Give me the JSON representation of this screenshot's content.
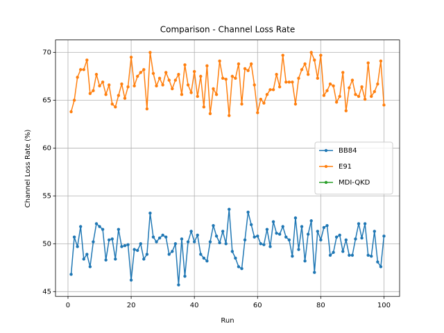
{
  "chart_data": {
    "type": "line",
    "title": "Comparison - Channel Loss Rate",
    "x_label": "Run",
    "y_label": "Channel Loss Rate (%)",
    "x": [
      1,
      2,
      3,
      4,
      5,
      6,
      7,
      8,
      9,
      10,
      11,
      12,
      13,
      14,
      15,
      16,
      17,
      18,
      19,
      20,
      21,
      22,
      23,
      24,
      25,
      26,
      27,
      28,
      29,
      30,
      31,
      32,
      33,
      34,
      35,
      36,
      37,
      38,
      39,
      40,
      41,
      42,
      43,
      44,
      45,
      46,
      47,
      48,
      49,
      50,
      51,
      52,
      53,
      54,
      55,
      56,
      57,
      58,
      59,
      60,
      61,
      62,
      63,
      64,
      65,
      66,
      67,
      68,
      69,
      70,
      71,
      72,
      73,
      74,
      75,
      76,
      77,
      78,
      79,
      80,
      81,
      82,
      83,
      84,
      85,
      86,
      87,
      88,
      89,
      90,
      91,
      92,
      93,
      94,
      95,
      96,
      97,
      98,
      99,
      100
    ],
    "series": [
      {
        "name": "BB84",
        "color": "#1f77b4",
        "values": [
          46.8,
          50.7,
          49.7,
          51.8,
          48.4,
          48.9,
          47.6,
          50.2,
          52.1,
          51.8,
          51.5,
          48.3,
          50.4,
          50.5,
          48.4,
          51.5,
          49.7,
          49.8,
          49.9,
          46.2,
          49.4,
          49.3,
          50.0,
          48.4,
          48.9,
          53.2,
          50.7,
          50.2,
          50.6,
          50.9,
          50.7,
          48.9,
          49.2,
          50.0,
          45.7,
          50.5,
          46.6,
          50.2,
          51.3,
          50.2,
          50.9,
          48.9,
          48.5,
          48.2,
          50.2,
          51.9,
          50.8,
          50.1,
          51.3,
          50.0,
          53.6,
          49.2,
          48.5,
          47.6,
          47.4,
          50.4,
          53.3,
          52.0,
          50.7,
          50.8,
          50.0,
          49.9,
          51.5,
          49.7,
          52.3,
          51.1,
          51.0,
          51.8,
          50.7,
          50.4,
          48.7,
          52.7,
          49.4,
          51.8,
          48.2,
          51.0,
          52.4,
          47.0,
          51.3,
          50.4,
          51.7,
          51.9,
          48.8,
          49.1,
          50.7,
          50.9,
          49.2,
          50.4,
          48.8,
          48.8,
          50.5,
          52.1,
          50.6,
          52.1,
          48.8,
          48.7,
          51.3,
          48.1,
          47.6,
          50.8
        ]
      },
      {
        "name": "E91",
        "color": "#ff7f0e",
        "values": [
          63.8,
          65.0,
          67.4,
          68.2,
          68.2,
          69.2,
          65.7,
          66.0,
          67.7,
          66.5,
          66.9,
          65.6,
          66.6,
          64.6,
          64.3,
          65.5,
          66.7,
          65.2,
          66.4,
          69.5,
          66.5,
          67.5,
          67.9,
          68.2,
          64.1,
          70.0,
          67.8,
          66.5,
          67.3,
          66.6,
          67.9,
          67.1,
          66.2,
          67.1,
          67.7,
          65.6,
          68.7,
          66.6,
          65.8,
          68.0,
          65.4,
          67.5,
          64.3,
          68.6,
          63.6,
          66.2,
          65.6,
          69.1,
          67.3,
          67.2,
          63.4,
          67.5,
          67.3,
          68.8,
          64.6,
          68.3,
          68.1,
          68.8,
          66.6,
          63.7,
          65.1,
          64.7,
          65.6,
          66.1,
          66.1,
          67.7,
          66.4,
          69.7,
          66.9,
          66.9,
          66.9,
          64.6,
          67.3,
          68.2,
          68.8,
          67.7,
          70.0,
          69.2,
          67.3,
          69.7,
          65.5,
          66.0,
          66.7,
          66.5,
          64.8,
          65.4,
          67.9,
          63.9,
          66.3,
          67.1,
          65.6,
          65.4,
          66.4,
          65.1,
          68.9,
          65.4,
          65.9,
          66.7,
          69.1,
          64.5
        ]
      },
      {
        "name": "MDI-QKD",
        "color": "#2ca02c",
        "values": [
          null,
          null,
          null,
          null,
          null,
          null,
          null,
          null,
          null,
          null,
          null,
          null,
          null,
          null,
          null,
          null,
          null,
          null,
          null,
          null,
          null,
          null,
          null,
          null,
          null,
          null,
          null,
          null,
          null,
          null,
          null,
          null,
          null,
          null,
          null,
          null,
          null,
          null,
          null,
          null,
          null,
          null,
          null,
          null,
          null,
          null,
          null,
          null,
          null,
          null,
          null,
          null,
          null,
          null,
          null,
          null,
          null,
          null,
          null,
          null,
          null,
          null,
          null,
          null,
          null,
          null,
          null,
          null,
          null,
          null,
          null,
          null,
          null,
          null,
          null,
          null,
          null,
          null,
          null,
          null,
          null,
          null,
          null,
          null,
          null,
          null,
          null,
          null,
          null,
          null,
          null,
          null,
          null,
          null,
          null,
          null,
          null,
          null,
          null,
          null
        ]
      }
    ],
    "xlim": [
      -3.95,
      104.95
    ],
    "xticks": [
      0,
      20,
      40,
      60,
      80,
      100
    ],
    "ylim": [
      44.5,
      71.3
    ],
    "yticks": [
      45,
      50,
      55,
      60,
      65,
      70
    ],
    "grid": true,
    "legend": "center right"
  }
}
